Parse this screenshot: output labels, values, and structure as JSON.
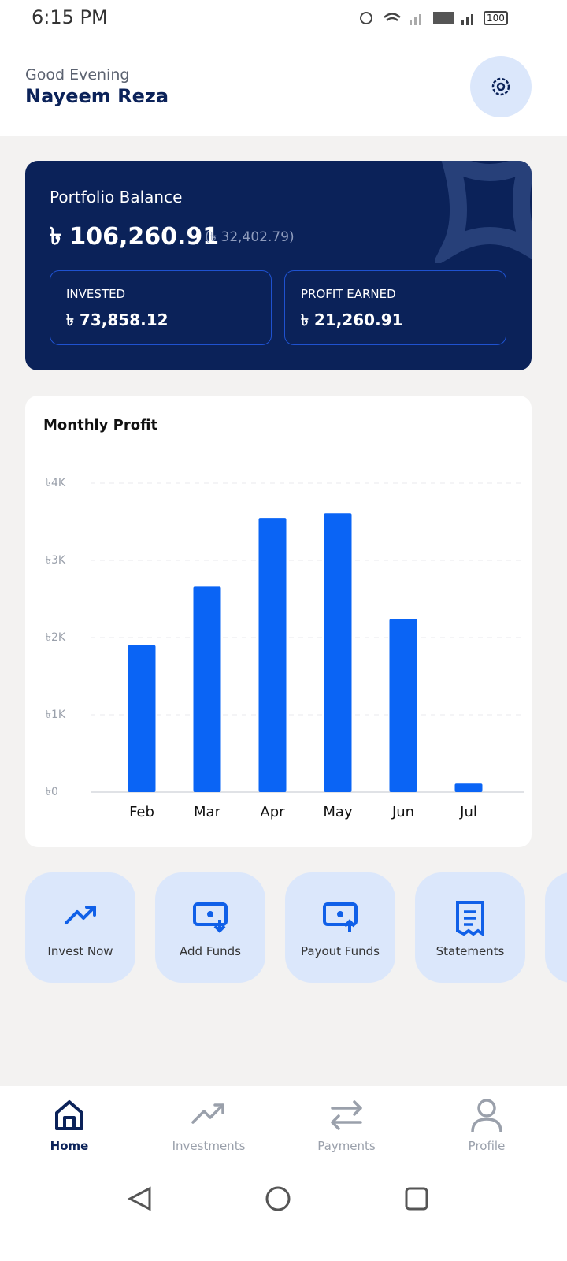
{
  "status": {
    "time": "6:15 PM",
    "battery": "100"
  },
  "header": {
    "greeting": "Good Evening",
    "name": "Nayeem Reza"
  },
  "portfolio": {
    "title": "Portfolio Balance",
    "balance": "৳ 106,260.91",
    "change": "(৳ 32,402.79)",
    "invested_label": "INVESTED",
    "invested": "৳ 73,858.12",
    "profit_label": "PROFIT EARNED",
    "profit": "৳ 21,260.91"
  },
  "chart_data": {
    "type": "bar",
    "title": "Monthly Profit",
    "categories": [
      "Feb",
      "Mar",
      "Apr",
      "May",
      "Jun",
      "Jul"
    ],
    "values": [
      1900,
      2660,
      3550,
      3610,
      2240,
      110
    ],
    "color": "#0a64f5",
    "ylim": [
      0,
      4000
    ],
    "yticks": [
      {
        "value": 0,
        "label": "৳0"
      },
      {
        "value": 1000,
        "label": "৳1K"
      },
      {
        "value": 2000,
        "label": "৳2K"
      },
      {
        "value": 3000,
        "label": "৳3K"
      },
      {
        "value": 4000,
        "label": "৳4K"
      }
    ],
    "grid": true
  },
  "actions": [
    "Invest Now",
    "Add Funds",
    "Payout Funds",
    "Statements"
  ],
  "nav": [
    "Home",
    "Investments",
    "Payments",
    "Profile"
  ]
}
